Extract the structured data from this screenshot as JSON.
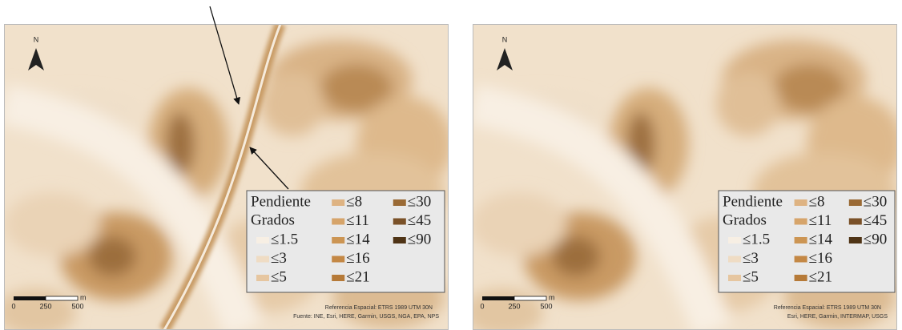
{
  "panels": [
    {
      "north": "N",
      "legend": {
        "title": "Pendiente",
        "subtitle": "Grados",
        "classes": [
          {
            "label": "≤1.5",
            "color": "#f7efe4"
          },
          {
            "label": "≤3",
            "color": "#efdcc4"
          },
          {
            "label": "≤5",
            "color": "#e6c6a0"
          },
          {
            "label": "≤8",
            "color": "#deb382"
          },
          {
            "label": "≤11",
            "color": "#d6a46a"
          },
          {
            "label": "≤14",
            "color": "#cc9553"
          },
          {
            "label": "≤16",
            "color": "#c48845"
          },
          {
            "label": "≤21",
            "color": "#b67a38"
          },
          {
            "label": "≤30",
            "color": "#9a6a35"
          },
          {
            "label": "≤45",
            "color": "#7a5128"
          },
          {
            "label": "≤90",
            "color": "#4f3416"
          }
        ]
      },
      "scale": {
        "labels": [
          "0",
          "250",
          "500"
        ],
        "unit": "m"
      },
      "reference": "Referencia Espacial: ETRS 1989 UTM 30N",
      "attribution": "Fuente: INE, Esri, HERE, Garmin, USGS, NGA, EPA, NPS"
    },
    {
      "north": "N",
      "legend": {
        "title": "Pendiente",
        "subtitle": "Grados",
        "classes": [
          {
            "label": "≤1.5",
            "color": "#f7efe4"
          },
          {
            "label": "≤3",
            "color": "#efdcc4"
          },
          {
            "label": "≤5",
            "color": "#e6c6a0"
          },
          {
            "label": "≤8",
            "color": "#deb382"
          },
          {
            "label": "≤11",
            "color": "#d6a46a"
          },
          {
            "label": "≤14",
            "color": "#cc9553"
          },
          {
            "label": "≤16",
            "color": "#c48845"
          },
          {
            "label": "≤21",
            "color": "#b67a38"
          },
          {
            "label": "≤30",
            "color": "#9a6a35"
          },
          {
            "label": "≤45",
            "color": "#7a5128"
          },
          {
            "label": "≤90",
            "color": "#4f3416"
          }
        ]
      },
      "scale": {
        "labels": [
          "0",
          "250",
          "500"
        ],
        "unit": "m"
      },
      "reference": "Referencia Espacial: ETRS 1989 UTM 30N",
      "attribution": "Esri, HERE, Garmin, INTERMAP, USGS"
    }
  ]
}
